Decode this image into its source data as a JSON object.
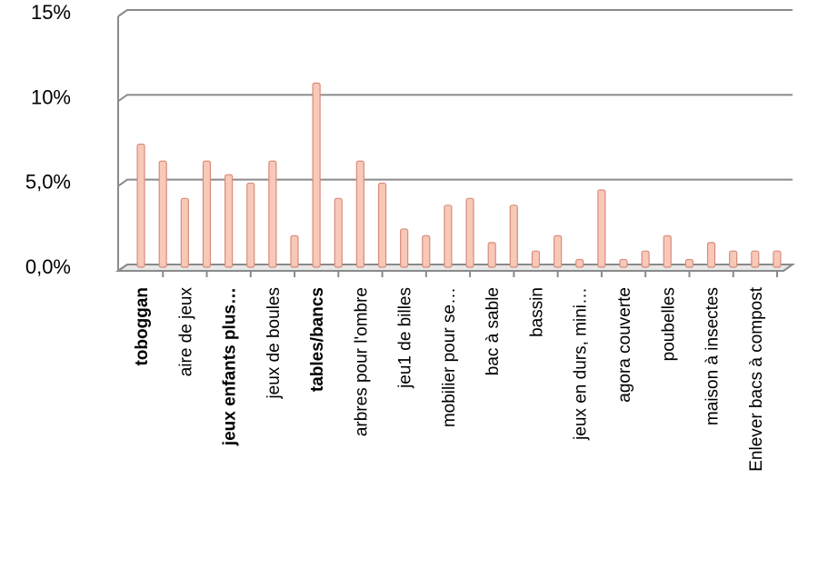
{
  "chart_data": {
    "type": "bar",
    "y_tick_labels": [
      "0,0%",
      "5,0%",
      "10%",
      "15%"
    ],
    "ylim": [
      0,
      15
    ],
    "grid": true,
    "legend": "none",
    "bar_color": "#f8c8b8",
    "bar_edge_color": "#d98c7c",
    "x_tick_labels": [
      {
        "label": "toboggan",
        "bold": true
      },
      {
        "label": "aire de jeux",
        "bold": false
      },
      {
        "label": "jeux enfants plus…",
        "bold": true
      },
      {
        "label": "jeux de boules",
        "bold": false
      },
      {
        "label": "tables/bancs",
        "bold": true
      },
      {
        "label": "arbres pour l'ombre",
        "bold": false
      },
      {
        "label": "jeu1 de billes",
        "bold": false
      },
      {
        "label": "mobilier pour se…",
        "bold": false
      },
      {
        "label": "bac à sable",
        "bold": false
      },
      {
        "label": "bassin",
        "bold": false
      },
      {
        "label": "jeux en durs, mini…",
        "bold": false
      },
      {
        "label": "agora couverte",
        "bold": false
      },
      {
        "label": "poubelles",
        "bold": false
      },
      {
        "label": "maison à insectes",
        "bold": false
      },
      {
        "label": "Enlever bacs à compost",
        "bold": false
      }
    ],
    "values": [
      7.2,
      6.2,
      4.0,
      6.2,
      5.4,
      4.9,
      6.2,
      1.8,
      10.8,
      4.0,
      6.2,
      4.9,
      2.2,
      1.8,
      3.6,
      4.0,
      1.4,
      3.6,
      0.9,
      1.8,
      0.4,
      4.5,
      0.4,
      0.9,
      1.8,
      0.4,
      1.4,
      0.9,
      0.9,
      0.9
    ]
  }
}
